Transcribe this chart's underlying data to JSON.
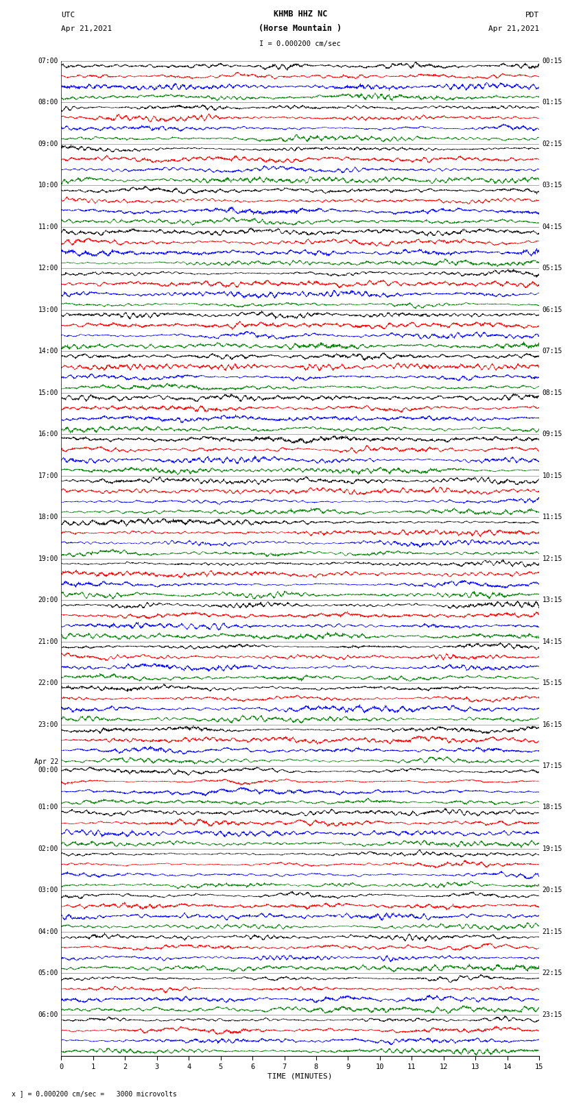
{
  "title_line1": "KHMB HHZ NC",
  "title_line2": "(Horse Mountain )",
  "title_line3": "I = 0.000200 cm/sec",
  "left_header": "UTC",
  "left_date": "Apr 21,2021",
  "right_header": "PDT",
  "right_date": "Apr 21,2021",
  "xlabel": "TIME (MINUTES)",
  "bottom_note": "x ] = 0.000200 cm/sec =   3000 microvolts",
  "xmin": 0,
  "xmax": 15,
  "colors": [
    "black",
    "red",
    "blue",
    "green"
  ],
  "bg_color": "white",
  "utc_hour_labels": [
    "07:00",
    "08:00",
    "09:00",
    "10:00",
    "11:00",
    "12:00",
    "13:00",
    "14:00",
    "15:00",
    "16:00",
    "17:00",
    "18:00",
    "19:00",
    "20:00",
    "21:00",
    "22:00",
    "23:00",
    "Apr 22\n00:00",
    "01:00",
    "02:00",
    "03:00",
    "04:00",
    "05:00",
    "06:00"
  ],
  "pdt_hour_labels": [
    "00:15",
    "01:15",
    "02:15",
    "03:15",
    "04:15",
    "05:15",
    "06:15",
    "07:15",
    "08:15",
    "09:15",
    "10:15",
    "11:15",
    "12:15",
    "13:15",
    "14:15",
    "15:15",
    "16:15",
    "17:15",
    "18:15",
    "19:15",
    "20:15",
    "21:15",
    "22:15",
    "23:15"
  ],
  "amplitude": 0.42,
  "num_hours": 24,
  "traces_per_hour": 4,
  "seed": 42,
  "n_points": 3000,
  "high_freq_min": 15,
  "high_freq_max": 80,
  "low_freq_min": 2,
  "low_freq_max": 8
}
